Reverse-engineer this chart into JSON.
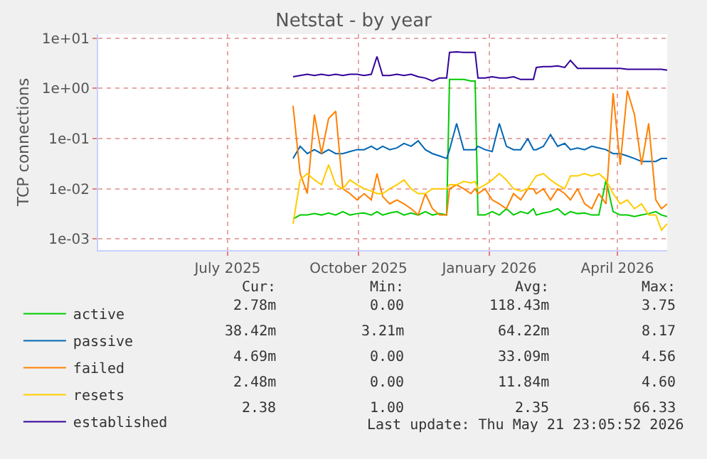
{
  "chart_data": {
    "type": "line",
    "title": "Netstat - by year",
    "ylabel": "TCP connections",
    "x": [
      "2025-08-31",
      "2025-09-05",
      "2025-09-10",
      "2025-09-15",
      "2025-09-20",
      "2025-09-25",
      "2025-09-30",
      "2025-10-05",
      "2025-10-10",
      "2025-10-15",
      "2025-10-20",
      "2025-10-25",
      "2025-10-29",
      "2025-11-02",
      "2025-11-07",
      "2025-11-12",
      "2025-11-17",
      "2025-11-22",
      "2025-11-27",
      "2025-12-02",
      "2025-12-07",
      "2025-12-12",
      "2025-12-17",
      "2025-12-19",
      "2025-12-24",
      "2025-12-29",
      "2026-01-03",
      "2026-01-06",
      "2026-01-08",
      "2026-01-13",
      "2026-01-18",
      "2026-01-23",
      "2026-01-28",
      "2026-02-02",
      "2026-02-07",
      "2026-02-12",
      "2026-02-16",
      "2026-02-18",
      "2026-02-23",
      "2026-02-28",
      "2026-03-05",
      "2026-03-10",
      "2026-03-14",
      "2026-03-19",
      "2026-03-24",
      "2026-03-29",
      "2026-04-03",
      "2026-04-08",
      "2026-04-13",
      "2026-04-18",
      "2026-04-23",
      "2026-04-28",
      "2026-05-03",
      "2026-05-08",
      "2026-05-13",
      "2026-05-17",
      "2026-05-21"
    ],
    "series": [
      {
        "name": "active",
        "color": "#00cc00",
        "values": [
          0.0025,
          0.003,
          0.003,
          0.0032,
          0.003,
          0.0033,
          0.003,
          0.0035,
          0.003,
          0.0032,
          0.0033,
          0.003,
          0.0035,
          0.003,
          0.0033,
          0.0035,
          0.003,
          0.0033,
          0.003,
          0.0035,
          0.003,
          0.0032,
          0.003,
          1.5,
          1.5,
          1.5,
          1.4,
          1.4,
          0.003,
          0.003,
          0.0035,
          0.003,
          0.004,
          0.003,
          0.0035,
          0.0032,
          0.004,
          0.003,
          0.0033,
          0.0035,
          0.004,
          0.003,
          0.0035,
          0.0032,
          0.0033,
          0.003,
          0.003,
          0.015,
          0.0035,
          0.003,
          0.003,
          0.0028,
          0.003,
          0.0032,
          0.0035,
          0.003,
          0.0028
        ]
      },
      {
        "name": "passive",
        "color": "#0066b3",
        "values": [
          0.04,
          0.07,
          0.05,
          0.06,
          0.05,
          0.06,
          0.05,
          0.05,
          0.055,
          0.06,
          0.06,
          0.07,
          0.06,
          0.07,
          0.06,
          0.065,
          0.08,
          0.07,
          0.09,
          0.06,
          0.05,
          0.045,
          0.04,
          0.06,
          0.2,
          0.06,
          0.06,
          0.06,
          0.07,
          0.06,
          0.055,
          0.2,
          0.07,
          0.06,
          0.06,
          0.1,
          0.06,
          0.06,
          0.07,
          0.12,
          0.07,
          0.08,
          0.06,
          0.065,
          0.06,
          0.07,
          0.065,
          0.06,
          0.05,
          0.05,
          0.045,
          0.04,
          0.035,
          0.035,
          0.035,
          0.04,
          0.04
        ]
      },
      {
        "name": "failed",
        "color": "#ff8000",
        "values": [
          0.45,
          0.02,
          0.008,
          0.3,
          0.05,
          0.25,
          0.35,
          0.01,
          0.008,
          0.006,
          0.008,
          0.006,
          0.02,
          0.007,
          0.005,
          0.006,
          0.005,
          0.004,
          0.003,
          0.008,
          0.004,
          0.003,
          0.003,
          0.01,
          0.012,
          0.01,
          0.008,
          0.01,
          0.008,
          0.01,
          0.006,
          0.005,
          0.004,
          0.008,
          0.006,
          0.01,
          0.01,
          0.008,
          0.01,
          0.006,
          0.01,
          0.008,
          0.006,
          0.01,
          0.005,
          0.004,
          0.008,
          0.005,
          0.8,
          0.03,
          0.9,
          0.3,
          0.03,
          0.2,
          0.006,
          0.004,
          0.005
        ]
      },
      {
        "name": "resets",
        "color": "#ffcc00",
        "values": [
          0.002,
          0.015,
          0.02,
          0.015,
          0.012,
          0.03,
          0.012,
          0.01,
          0.015,
          0.012,
          0.01,
          0.009,
          0.008,
          0.008,
          0.01,
          0.012,
          0.015,
          0.01,
          0.008,
          0.008,
          0.01,
          0.01,
          0.01,
          0.012,
          0.012,
          0.014,
          0.013,
          0.014,
          0.01,
          0.012,
          0.015,
          0.02,
          0.015,
          0.01,
          0.009,
          0.01,
          0.015,
          0.018,
          0.02,
          0.015,
          0.012,
          0.01,
          0.018,
          0.018,
          0.02,
          0.018,
          0.02,
          0.015,
          0.008,
          0.005,
          0.006,
          0.004,
          0.005,
          0.003,
          0.003,
          0.0015,
          0.002
        ]
      },
      {
        "name": "established",
        "color": "#330099",
        "values": [
          1.7,
          1.8,
          1.9,
          1.8,
          1.9,
          1.8,
          1.9,
          1.8,
          1.9,
          1.9,
          1.8,
          1.9,
          4.3,
          1.8,
          1.8,
          1.9,
          1.8,
          1.9,
          1.7,
          1.6,
          1.4,
          1.6,
          1.6,
          5.2,
          5.3,
          5.2,
          5.2,
          5.2,
          1.6,
          1.6,
          1.7,
          1.6,
          1.6,
          1.7,
          1.5,
          1.5,
          1.5,
          2.6,
          2.7,
          2.7,
          2.8,
          2.6,
          3.6,
          2.5,
          2.5,
          2.5,
          2.5,
          2.5,
          2.5,
          2.5,
          2.4,
          2.4,
          2.4,
          2.4,
          2.4,
          2.4,
          2.3
        ]
      }
    ],
    "log": true,
    "xlim": [
      "2025-04-16",
      "2026-05-21"
    ],
    "xticks": [
      {
        "value": "2025-07-16",
        "label": "July 2025"
      },
      {
        "value": "2025-10-16",
        "label": "October 2025"
      },
      {
        "value": "2026-01-16",
        "label": "January 2026"
      },
      {
        "value": "2026-04-16",
        "label": "April 2026"
      }
    ],
    "ylim": [
      0.0006,
      12
    ],
    "yticks": [
      {
        "value": 0.001,
        "label": "1e-03"
      },
      {
        "value": 0.01,
        "label": "1e-02"
      },
      {
        "value": 0.1,
        "label": "1e-01"
      },
      {
        "value": 1,
        "label": "1e+00"
      },
      {
        "value": 10,
        "label": "1e+01"
      }
    ],
    "grid": true,
    "legend": "bottom left",
    "marker": "none",
    "line_style": "solid",
    "annotations": [
      "Cur:",
      "Min:",
      "Avg:",
      "Max:",
      "2.78m",
      "0.00",
      "118.43m",
      "3.75",
      "38.42m",
      "3.21m",
      "64.22m",
      "8.17",
      "4.69m",
      "0.00",
      "33.09m",
      "4.56",
      "2.48m",
      "0.00",
      "11.84m",
      "4.60",
      "2.38",
      "1.00",
      "2.35",
      "66.33",
      "Last update: Thu May 21 23:05:52 2026"
    ]
  }
}
